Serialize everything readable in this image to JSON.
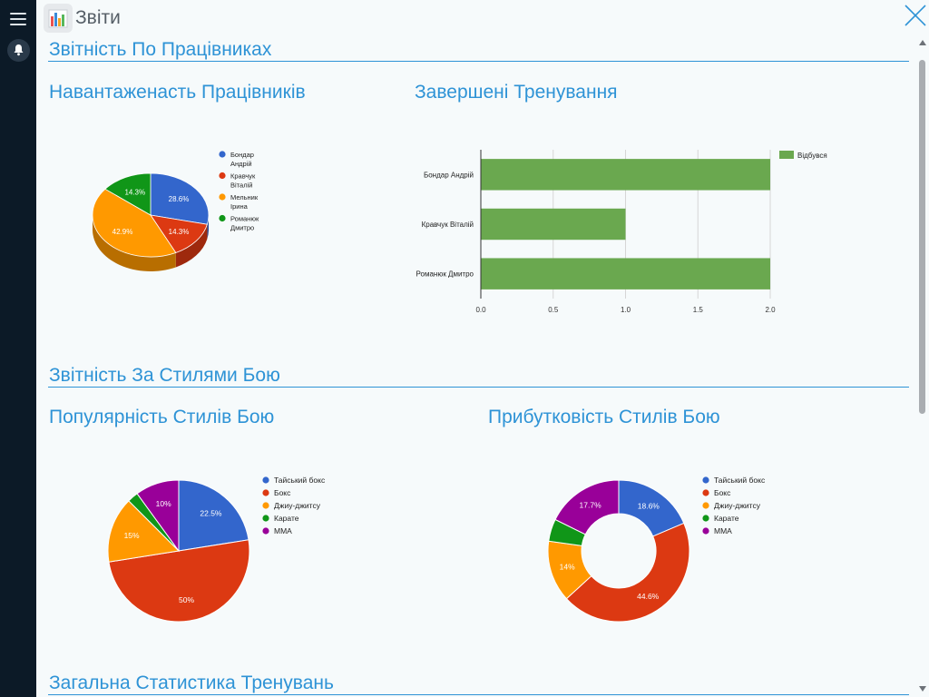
{
  "window": {
    "title": "Звіти",
    "icons": {
      "menu": "menu-icon",
      "bell": "bell-icon",
      "app": "bar-chart-icon",
      "close": "close-icon"
    }
  },
  "sections": {
    "employees": "Звітність По Працівниках",
    "styles": "Звітність За Стилями Бою",
    "general": "Загальна Статистика Тренувань"
  },
  "chart_data": [
    {
      "type": "pie",
      "variant": "3d",
      "title": "Навантаженасть Працівників",
      "labels": [
        "Бондар Андрій",
        "Кравчук Віталій",
        "Мельник Ірина",
        "Романюк Дмитро"
      ],
      "legend_lines": [
        [
          "Бондар",
          "Андрій"
        ],
        [
          "Кравчук",
          "Віталій"
        ],
        [
          "Мельник",
          "Ірина"
        ],
        [
          "Романюк",
          "Дмитро"
        ]
      ],
      "values": [
        28.6,
        14.3,
        42.9,
        14.3
      ],
      "value_labels": [
        "28.6%",
        "14.3%",
        "42.9%",
        "14.3%"
      ],
      "colors": [
        "#3366cc",
        "#dc3912",
        "#ff9900",
        "#109618"
      ],
      "legend": "right"
    },
    {
      "type": "bar",
      "orientation": "horizontal",
      "title": "Завершені Тренування",
      "categories": [
        "Бондар Андрій",
        "Кравчук Віталій",
        "Романюк Дмитро"
      ],
      "series": [
        {
          "name": "Відбувся",
          "values": [
            2,
            1,
            2
          ],
          "color": "#6aa84f"
        }
      ],
      "xlim": [
        0,
        2
      ],
      "xticks": [
        "0.0",
        "0.5",
        "1.0",
        "1.5",
        "2.0"
      ],
      "grid": true,
      "legend": "top-right"
    },
    {
      "type": "pie",
      "title": "Популярність Стилів Бою",
      "labels": [
        "Тайський бокс",
        "Бокс",
        "Джиу-джитсу",
        "Карате",
        "ММА"
      ],
      "values": [
        22.5,
        50,
        15,
        2.5,
        10
      ],
      "value_labels": [
        "22.5%",
        "50%",
        "15%",
        "",
        "10%"
      ],
      "colors": [
        "#3366cc",
        "#dc3912",
        "#ff9900",
        "#109618",
        "#990099"
      ],
      "legend": "right"
    },
    {
      "type": "pie",
      "variant": "donut",
      "title": "Прибутковість Стилів Бою",
      "labels": [
        "Тайський бокс",
        "Бокс",
        "Джиу-джитсу",
        "Карате",
        "ММА"
      ],
      "values": [
        18.6,
        44.6,
        14,
        5.1,
        17.7
      ],
      "value_labels": [
        "18.6%",
        "44.6%",
        "14%",
        "",
        "17.7%"
      ],
      "colors": [
        "#3366cc",
        "#dc3912",
        "#ff9900",
        "#109618",
        "#990099"
      ],
      "legend": "right"
    }
  ]
}
